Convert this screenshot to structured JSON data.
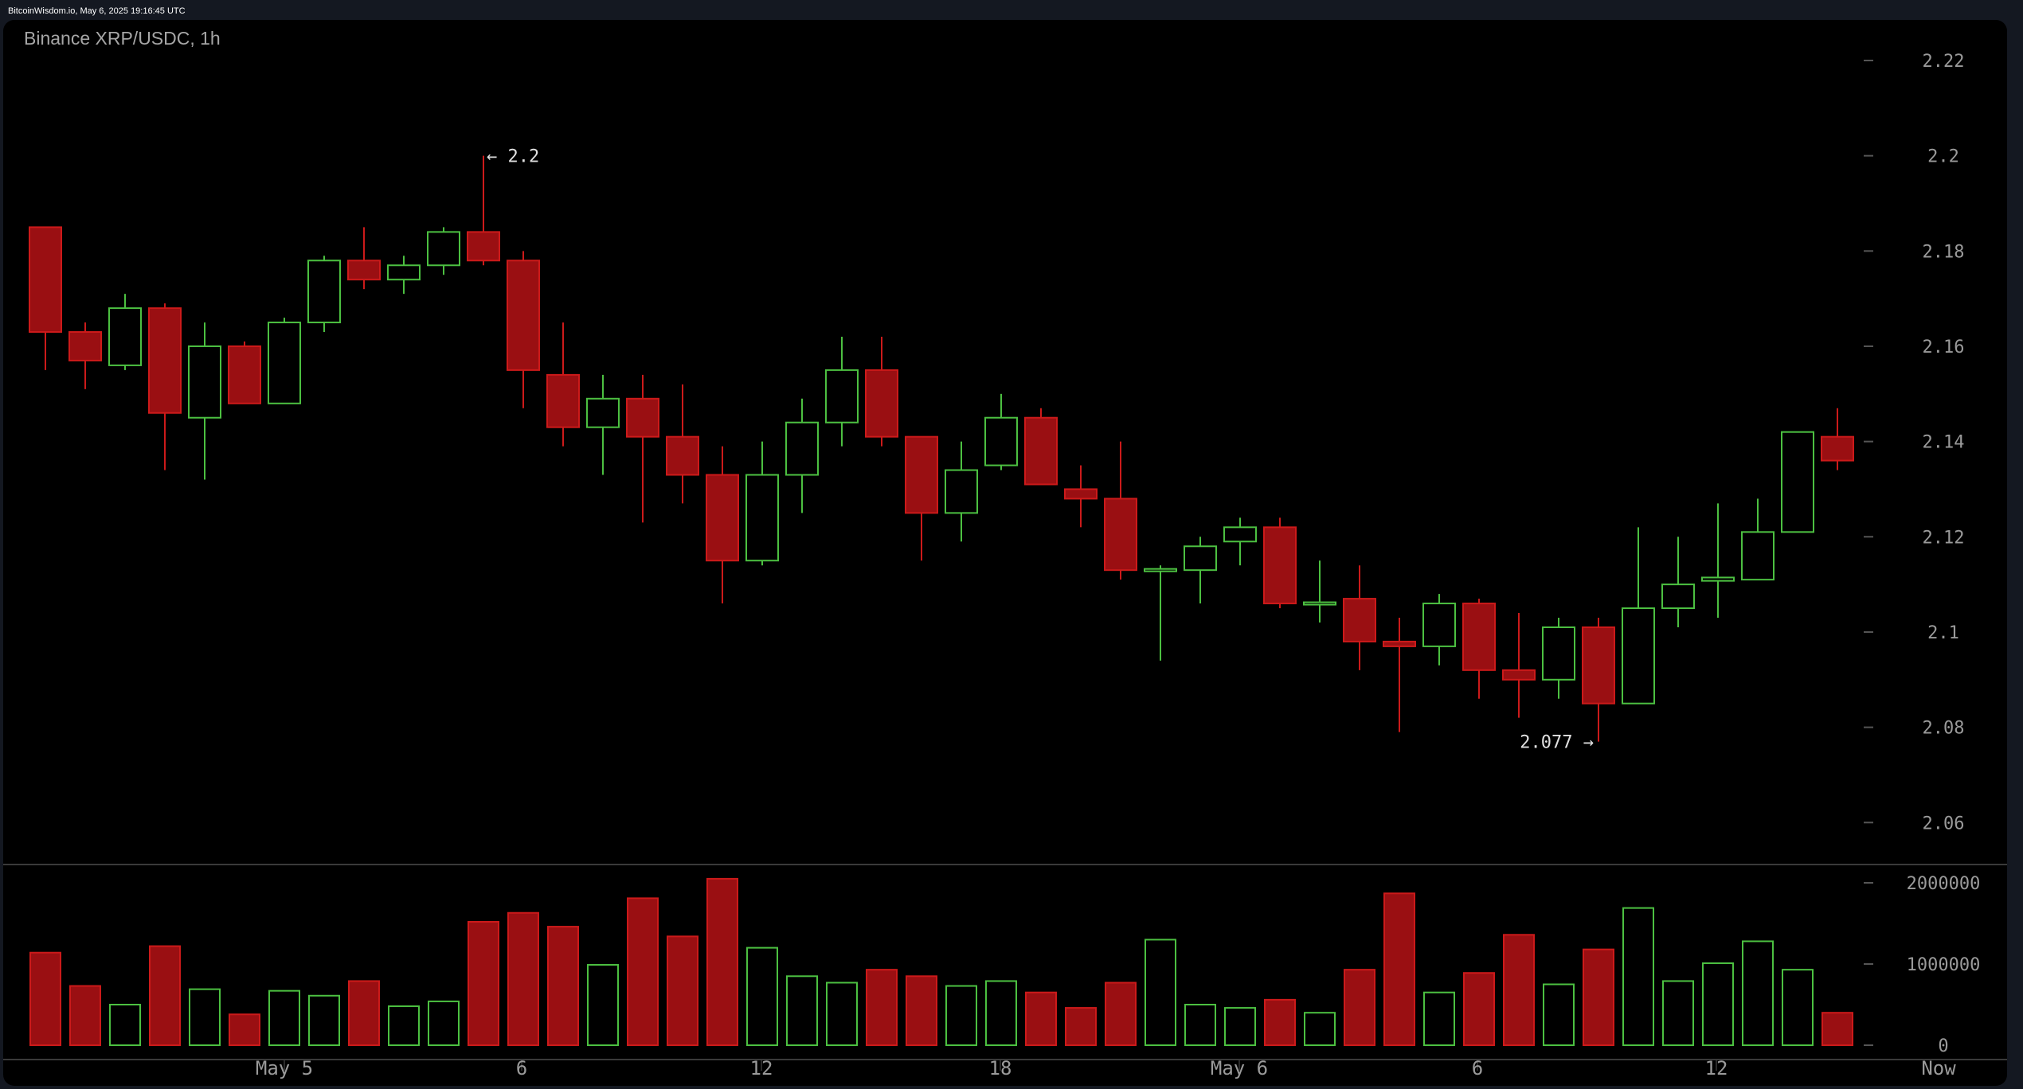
{
  "header": {
    "source_line": "BitcoinWisdom.io, May 6, 2025 19:16:45 UTC"
  },
  "chart": {
    "title": "Binance XRP/USDC, 1h",
    "colors": {
      "up": "#4cc041",
      "down": "#cc1a1a",
      "down_fill": "#9a0f12",
      "axis_text": "#9a9a9a",
      "grid_tick": "#555555",
      "separator": "#3a3a3a",
      "background": "#000000",
      "page_background": "#141821"
    },
    "annotations": {
      "high_label": "← 2.2",
      "low_label": "2.077 →"
    }
  },
  "chart_data": {
    "type": "candlestick",
    "title": "Binance XRP/USDC, 1h",
    "xlabel": "",
    "ylabel": "",
    "price_ticks": [
      "2.22",
      "2.2",
      "2.18",
      "2.16",
      "2.14",
      "2.12",
      "2.1",
      "2.08",
      "2.06"
    ],
    "price_tick_values": [
      2.22,
      2.2,
      2.18,
      2.16,
      2.14,
      2.12,
      2.1,
      2.08,
      2.06
    ],
    "volume_ticks": [
      "2000000",
      "1000000",
      "0"
    ],
    "volume_tick_values": [
      2000000,
      1000000,
      0
    ],
    "x_ticks": [
      {
        "label": "May 5",
        "index": 3.5
      },
      {
        "label": "6",
        "index": 9.5
      },
      {
        "label": "12",
        "index": 15.5
      },
      {
        "label": "18",
        "index": 21.5
      },
      {
        "label": "May 6",
        "index": 27.5
      },
      {
        "label": "6",
        "index": 33.5
      },
      {
        "label": "12",
        "index": 39.5
      },
      {
        "label": "Now",
        "index": 46.0
      }
    ],
    "ylim": [
      2.052,
      2.228
    ],
    "period_high": 2.2,
    "period_low": 2.077,
    "candles": [
      {
        "o": 2.185,
        "h": 2.185,
        "l": 2.155,
        "c": 2.163,
        "v": 1140000
      },
      {
        "o": 2.163,
        "h": 2.165,
        "l": 2.151,
        "c": 2.157,
        "v": 730000
      },
      {
        "o": 2.156,
        "h": 2.171,
        "l": 2.155,
        "c": 2.168,
        "v": 500000
      },
      {
        "o": 2.168,
        "h": 2.169,
        "l": 2.134,
        "c": 2.146,
        "v": 1220000
      },
      {
        "o": 2.145,
        "h": 2.165,
        "l": 2.132,
        "c": 2.16,
        "v": 690000
      },
      {
        "o": 2.16,
        "h": 2.161,
        "l": 2.148,
        "c": 2.148,
        "v": 380000
      },
      {
        "o": 2.148,
        "h": 2.166,
        "l": 2.148,
        "c": 2.165,
        "v": 670000
      },
      {
        "o": 2.165,
        "h": 2.179,
        "l": 2.163,
        "c": 2.178,
        "v": 610000
      },
      {
        "o": 2.178,
        "h": 2.185,
        "l": 2.172,
        "c": 2.174,
        "v": 790000
      },
      {
        "o": 2.174,
        "h": 2.179,
        "l": 2.171,
        "c": 2.177,
        "v": 480000
      },
      {
        "o": 2.177,
        "h": 2.185,
        "l": 2.175,
        "c": 2.184,
        "v": 540000
      },
      {
        "o": 2.184,
        "h": 2.2,
        "l": 2.177,
        "c": 2.178,
        "v": 1520000
      },
      {
        "o": 2.178,
        "h": 2.18,
        "l": 2.147,
        "c": 2.155,
        "v": 1630000
      },
      {
        "o": 2.154,
        "h": 2.165,
        "l": 2.139,
        "c": 2.143,
        "v": 1460000
      },
      {
        "o": 2.143,
        "h": 2.154,
        "l": 2.133,
        "c": 2.149,
        "v": 990000
      },
      {
        "o": 2.149,
        "h": 2.154,
        "l": 2.123,
        "c": 2.141,
        "v": 1810000
      },
      {
        "o": 2.141,
        "h": 2.152,
        "l": 2.127,
        "c": 2.133,
        "v": 1340000
      },
      {
        "o": 2.133,
        "h": 2.139,
        "l": 2.106,
        "c": 2.115,
        "v": 2050000
      },
      {
        "o": 2.115,
        "h": 2.14,
        "l": 2.114,
        "c": 2.133,
        "v": 1200000
      },
      {
        "o": 2.133,
        "h": 2.149,
        "l": 2.125,
        "c": 2.144,
        "v": 850000
      },
      {
        "o": 2.144,
        "h": 2.162,
        "l": 2.139,
        "c": 2.155,
        "v": 770000
      },
      {
        "o": 2.155,
        "h": 2.162,
        "l": 2.139,
        "c": 2.141,
        "v": 930000
      },
      {
        "o": 2.141,
        "h": 2.141,
        "l": 2.115,
        "c": 2.125,
        "v": 850000
      },
      {
        "o": 2.125,
        "h": 2.14,
        "l": 2.119,
        "c": 2.134,
        "v": 730000
      },
      {
        "o": 2.135,
        "h": 2.15,
        "l": 2.134,
        "c": 2.145,
        "v": 790000
      },
      {
        "o": 2.145,
        "h": 2.147,
        "l": 2.131,
        "c": 2.131,
        "v": 650000
      },
      {
        "o": 2.13,
        "h": 2.135,
        "l": 2.122,
        "c": 2.128,
        "v": 460000
      },
      {
        "o": 2.128,
        "h": 2.14,
        "l": 2.111,
        "c": 2.113,
        "v": 770000
      },
      {
        "o": 2.113,
        "h": 2.114,
        "l": 2.094,
        "c": 2.113,
        "v": 1300000
      },
      {
        "o": 2.113,
        "h": 2.12,
        "l": 2.106,
        "c": 2.118,
        "v": 500000
      },
      {
        "o": 2.119,
        "h": 2.124,
        "l": 2.114,
        "c": 2.122,
        "v": 460000
      },
      {
        "o": 2.122,
        "h": 2.124,
        "l": 2.105,
        "c": 2.106,
        "v": 560000
      },
      {
        "o": 2.106,
        "h": 2.115,
        "l": 2.102,
        "c": 2.106,
        "v": 400000
      },
      {
        "o": 2.107,
        "h": 2.114,
        "l": 2.092,
        "c": 2.098,
        "v": 930000
      },
      {
        "o": 2.098,
        "h": 2.103,
        "l": 2.079,
        "c": 2.097,
        "v": 1870000
      },
      {
        "o": 2.097,
        "h": 2.108,
        "l": 2.093,
        "c": 2.106,
        "v": 650000
      },
      {
        "o": 2.106,
        "h": 2.107,
        "l": 2.086,
        "c": 2.092,
        "v": 890000
      },
      {
        "o": 2.092,
        "h": 2.104,
        "l": 2.082,
        "c": 2.09,
        "v": 1360000
      },
      {
        "o": 2.09,
        "h": 2.103,
        "l": 2.086,
        "c": 2.101,
        "v": 750000
      },
      {
        "o": 2.101,
        "h": 2.103,
        "l": 2.077,
        "c": 2.085,
        "v": 1180000
      },
      {
        "o": 2.085,
        "h": 2.122,
        "l": 2.085,
        "c": 2.105,
        "v": 1690000
      },
      {
        "o": 2.105,
        "h": 2.12,
        "l": 2.101,
        "c": 2.11,
        "v": 790000
      },
      {
        "o": 2.111,
        "h": 2.127,
        "l": 2.103,
        "c": 2.1112,
        "v": 1010000
      },
      {
        "o": 2.111,
        "h": 2.128,
        "l": 2.111,
        "c": 2.121,
        "v": 1280000
      },
      {
        "o": 2.121,
        "h": 2.142,
        "l": 2.121,
        "c": 2.142,
        "v": 930000
      },
      {
        "o": 2.141,
        "h": 2.147,
        "l": 2.134,
        "c": 2.136,
        "v": 400000
      }
    ],
    "grid": false,
    "legend": "none"
  }
}
